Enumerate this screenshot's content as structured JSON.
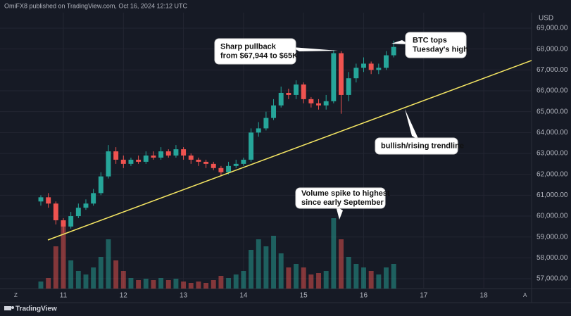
{
  "chart_data": {
    "type": "candlestick",
    "header": "OmiFX8 published on TradingView.com, Oct 16, 2024 12:12 UTC",
    "currency": "USD",
    "footer": "TradingView",
    "x": [
      10.625,
      10.75,
      10.875,
      11.0,
      11.125,
      11.25,
      11.375,
      11.5,
      11.625,
      11.75,
      11.875,
      12.0,
      12.125,
      12.25,
      12.375,
      12.5,
      12.625,
      12.75,
      12.875,
      13.0,
      13.125,
      13.25,
      13.375,
      13.5,
      13.625,
      13.75,
      13.875,
      14.0,
      14.125,
      14.25,
      14.375,
      14.5,
      14.625,
      14.75,
      14.875,
      15.0,
      15.125,
      15.25,
      15.375,
      15.5,
      15.625,
      15.75,
      15.875,
      16.0,
      16.125,
      16.25,
      16.375,
      16.5
    ],
    "open": [
      60700,
      60900,
      60600,
      59800,
      59500,
      60000,
      60400,
      60600,
      61100,
      61900,
      63100,
      62700,
      62500,
      62700,
      62600,
      62900,
      62800,
      63100,
      62900,
      63200,
      62900,
      62700,
      62600,
      62500,
      62300,
      62100,
      62400,
      62500,
      62700,
      64000,
      64200,
      64700,
      65300,
      65900,
      65800,
      66300,
      65600,
      65400,
      65300,
      65500,
      67800,
      65800,
      66600,
      67100,
      67300,
      67000,
      67100,
      67700
    ],
    "high": [
      61000,
      61100,
      60700,
      59900,
      60200,
      60600,
      60800,
      61300,
      62100,
      63400,
      63300,
      62900,
      62800,
      62900,
      63100,
      63100,
      63300,
      63200,
      63400,
      63300,
      63000,
      62800,
      62700,
      62600,
      62400,
      62600,
      62700,
      62800,
      64200,
      64500,
      65000,
      65600,
      66200,
      66100,
      66500,
      66400,
      65700,
      65600,
      65800,
      67944,
      67900,
      66900,
      67300,
      67600,
      67400,
      67300,
      67900,
      68400
    ],
    "low": [
      60500,
      60400,
      59600,
      59200,
      59400,
      59900,
      60300,
      60500,
      61000,
      61800,
      62500,
      62300,
      62400,
      62500,
      62500,
      62700,
      62700,
      62800,
      62800,
      62700,
      62500,
      62400,
      62300,
      62200,
      61900,
      62000,
      62300,
      62400,
      62600,
      63800,
      64100,
      64600,
      65200,
      65600,
      65600,
      65400,
      65200,
      65100,
      65100,
      65400,
      64900,
      65500,
      66400,
      66900,
      66800,
      66800,
      67000,
      67600
    ],
    "close": [
      60900,
      60600,
      59800,
      59500,
      60000,
      60400,
      60600,
      61100,
      61900,
      63100,
      62700,
      62500,
      62700,
      62600,
      62900,
      62800,
      63100,
      62900,
      63200,
      62900,
      62700,
      62600,
      62500,
      62300,
      62100,
      62400,
      62500,
      62700,
      64000,
      64200,
      64700,
      65300,
      65900,
      65800,
      66300,
      65600,
      65400,
      65300,
      65500,
      67800,
      65800,
      66600,
      67100,
      67300,
      67000,
      67100,
      67700,
      68100
    ],
    "volume": [
      10,
      15,
      60,
      95,
      40,
      25,
      20,
      30,
      45,
      70,
      40,
      25,
      15,
      12,
      14,
      12,
      15,
      12,
      14,
      10,
      8,
      10,
      8,
      12,
      18,
      15,
      20,
      25,
      55,
      70,
      60,
      75,
      50,
      30,
      35,
      30,
      20,
      22,
      25,
      100,
      70,
      45,
      35,
      30,
      25,
      20,
      30,
      35
    ],
    "xlim": [
      9.945,
      18.796
    ],
    "ylim": [
      56530,
      69741
    ],
    "xticks": [
      11,
      12,
      13,
      14,
      15,
      16,
      17,
      18
    ],
    "yticks": [
      {
        "value": 57000,
        "label": "57,000.00"
      },
      {
        "value": 58000,
        "label": "58,000.00"
      },
      {
        "value": 59000,
        "label": "59,000.00"
      },
      {
        "value": 60000,
        "label": "60,000.00"
      },
      {
        "value": 61000,
        "label": "61,000.00"
      },
      {
        "value": 62000,
        "label": "62,000.00"
      },
      {
        "value": 63000,
        "label": "63,000.00"
      },
      {
        "value": 64000,
        "label": "64,000.00"
      },
      {
        "value": 65000,
        "label": "65,000.00"
      },
      {
        "value": 66000,
        "label": "66,000.00"
      },
      {
        "value": 67000,
        "label": "67,000.00"
      },
      {
        "value": 68000,
        "label": "68,000.00"
      },
      {
        "value": 69000,
        "label": "69,000.00"
      }
    ],
    "grid": true,
    "up_color": "#26a69a",
    "down_color": "#ef5350",
    "trendline": {
      "x": [
        10.742,
        18.796
      ],
      "y": [
        58855,
        67450
      ],
      "color": "#f5e663"
    },
    "annotations": [
      {
        "lines": [
          "Sharp pullback",
          "from $67,944 to $65K"
        ]
      },
      {
        "lines": [
          "BTC tops",
          "Tuesday's high"
        ]
      },
      {
        "lines": [
          "bullish/rising trendline"
        ]
      },
      {
        "lines": [
          "Volume spike to highest",
          "since early September"
        ]
      }
    ]
  }
}
